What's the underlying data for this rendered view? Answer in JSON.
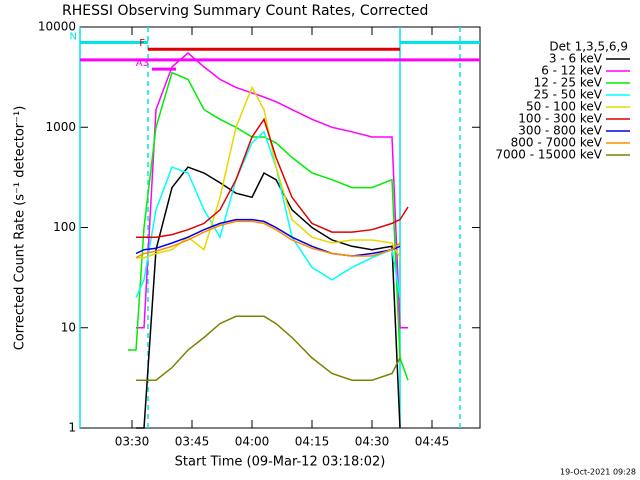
{
  "chart_data": {
    "type": "line",
    "title": "RHESSI Observing Summary Count Rates, Corrected",
    "x_label": "Start Time (09-Mar-12 03:18:02)",
    "y_label": "Corrected Count Rate (s⁻¹ detector⁻¹)",
    "legend_title": "Det 1,3,5,6,9",
    "footer": "19-Oct-2021 09:28",
    "log_y": true,
    "xlim": [
      "03:17",
      "04:57"
    ],
    "xticks": [
      "03:30",
      "03:45",
      "04:00",
      "04:15",
      "04:30",
      "04:45"
    ],
    "ylim": [
      1,
      10000
    ],
    "yticks": [
      1,
      10,
      100,
      1000,
      10000
    ],
    "x": [
      "03:29",
      "03:31",
      "03:33",
      "03:36",
      "03:40",
      "03:44",
      "03:48",
      "03:52",
      "03:56",
      "04:00",
      "04:03",
      "04:06",
      "04:10",
      "04:15",
      "04:20",
      "04:25",
      "04:30",
      "04:35",
      "04:37",
      "04:39"
    ],
    "series": [
      {
        "name": "3 - 6 keV",
        "color": "#000000",
        "values": [
          null,
          1,
          1,
          60,
          250,
          400,
          350,
          280,
          220,
          200,
          350,
          300,
          150,
          100,
          75,
          65,
          60,
          65,
          1,
          null
        ]
      },
      {
        "name": "6 - 12 keV",
        "color": "#ff00ff",
        "values": [
          null,
          10,
          10,
          1500,
          4000,
          5500,
          4000,
          3000,
          2500,
          2200,
          2000,
          1800,
          1500,
          1200,
          1000,
          900,
          800,
          800,
          10,
          10
        ]
      },
      {
        "name": "12 - 25 keV",
        "color": "#00ee00",
        "values": [
          6,
          6,
          100,
          1000,
          3500,
          3000,
          1500,
          1200,
          1000,
          800,
          800,
          700,
          500,
          350,
          300,
          250,
          250,
          300,
          5,
          3
        ]
      },
      {
        "name": "25 - 50 keV",
        "color": "#00ffff",
        "values": [
          null,
          20,
          30,
          150,
          400,
          350,
          150,
          80,
          300,
          700,
          900,
          400,
          80,
          40,
          30,
          40,
          50,
          60,
          20,
          null
        ]
      },
      {
        "name": "50 - 100 keV",
        "color": "#e6d800",
        "values": [
          null,
          50,
          50,
          55,
          60,
          80,
          60,
          200,
          1000,
          2500,
          1500,
          400,
          120,
          80,
          70,
          75,
          75,
          70,
          50,
          null
        ]
      },
      {
        "name": "100 - 300 keV",
        "color": "#e00000",
        "values": [
          null,
          80,
          80,
          80,
          85,
          95,
          110,
          150,
          300,
          800,
          1200,
          500,
          200,
          110,
          90,
          90,
          95,
          110,
          120,
          160
        ]
      },
      {
        "name": "300 - 800 keV",
        "color": "#0000ee",
        "values": [
          null,
          55,
          60,
          62,
          70,
          80,
          95,
          110,
          120,
          120,
          115,
          100,
          80,
          65,
          55,
          52,
          55,
          60,
          65,
          null
        ]
      },
      {
        "name": "800 - 7000 keV",
        "color": "#ff8c00",
        "values": [
          null,
          50,
          55,
          58,
          65,
          75,
          90,
          105,
          115,
          115,
          110,
          95,
          75,
          62,
          55,
          52,
          52,
          60,
          70,
          null
        ]
      },
      {
        "name": "7000 - 15000 keV",
        "color": "#808000",
        "values": [
          null,
          3,
          3,
          3,
          4,
          6,
          8,
          11,
          13,
          13,
          13,
          11,
          8,
          5,
          3.5,
          3,
          3,
          3.5,
          5,
          null
        ]
      }
    ],
    "hbars": [
      {
        "label": "N",
        "color": "#00e5e5",
        "value": 7000,
        "start": "03:17",
        "end": "03:34"
      },
      {
        "color": "#00e5e5",
        "value": 7000,
        "start": "04:37",
        "end": "04:57"
      },
      {
        "label": "F",
        "color": "#e00000",
        "value": 6000,
        "start": "03:34",
        "end": "04:37"
      },
      {
        "color": "#ff00ff",
        "value": 4700,
        "start": "03:17",
        "end": "04:57"
      },
      {
        "label": "A3",
        "color": "#ff00ff",
        "value": 3800,
        "start": "03:35",
        "end": "03:41"
      }
    ],
    "vlines": [
      {
        "x": "03:17",
        "dash": false,
        "color": "#00e5e5"
      },
      {
        "x": "03:34",
        "dash": true,
        "color": "#00e5e5"
      },
      {
        "x": "04:37",
        "dash": false,
        "color": "#00e5e5"
      },
      {
        "x": "04:52",
        "dash": true,
        "color": "#00e5e5"
      }
    ]
  }
}
